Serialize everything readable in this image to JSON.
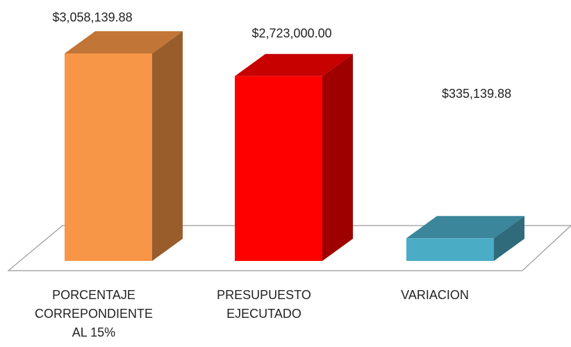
{
  "chart_data": {
    "type": "bar3d",
    "categories": [
      "PORCENTAJE CORREPONDIENTE AL 15%",
      "PRESUPUESTO EJECUTADO",
      "VARIACION"
    ],
    "values": [
      3058139.88,
      2723000.0,
      335139.88
    ],
    "value_labels": [
      "$3,058,139.88",
      "$2,723,000.00",
      "$335,139.88"
    ],
    "colors": [
      "#f79646",
      "#ff0000",
      "#4bacc6"
    ]
  }
}
